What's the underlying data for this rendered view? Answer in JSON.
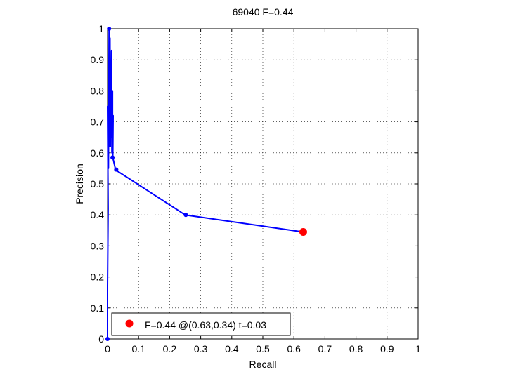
{
  "chart_data": {
    "type": "line",
    "title": "69040 F=0.44",
    "xlabel": "Recall",
    "ylabel": "Precision",
    "xlim": [
      0,
      1
    ],
    "ylim": [
      0,
      1
    ],
    "xticks": [
      0,
      0.1,
      0.2,
      0.3,
      0.4,
      0.5,
      0.6,
      0.7,
      0.8,
      0.9,
      1
    ],
    "yticks": [
      0,
      0.1,
      0.2,
      0.3,
      0.4,
      0.5,
      0.6,
      0.7,
      0.8,
      0.9,
      1
    ],
    "xtick_labels": [
      "0",
      "0.1",
      "0.2",
      "0.3",
      "0.4",
      "0.5",
      "0.6",
      "0.7",
      "0.8",
      "0.9",
      "1"
    ],
    "ytick_labels": [
      "0",
      "0.1",
      "0.2",
      "0.3",
      "0.4",
      "0.5",
      "0.6",
      "0.7",
      "0.8",
      "0.9",
      "1"
    ],
    "grid": true,
    "grid_style": "dotted",
    "legend_position": "bottom-left",
    "series": [
      {
        "color": "#0000ff",
        "line_points": [
          [
            0.0,
            0.0
          ],
          [
            0.0,
            0.17
          ],
          [
            0.002,
            0.42
          ],
          [
            0.0,
            0.75
          ],
          [
            0.003,
            0.55
          ],
          [
            0.005,
            1.0
          ],
          [
            0.007,
            0.62
          ],
          [
            0.008,
            0.97
          ],
          [
            0.009,
            0.62
          ],
          [
            0.01,
            0.8
          ],
          [
            0.011,
            0.65
          ],
          [
            0.013,
            0.93
          ],
          [
            0.014,
            0.6
          ],
          [
            0.016,
            0.8
          ],
          [
            0.016,
            0.59
          ],
          [
            0.018,
            0.72
          ],
          [
            0.017,
            0.585
          ],
          [
            0.026,
            0.545
          ],
          [
            0.25,
            0.4
          ],
          [
            0.629,
            0.345
          ]
        ],
        "marker_points": [
          [
            0.0,
            0.0
          ],
          [
            0.005,
            1.0
          ],
          [
            0.016,
            0.585
          ],
          [
            0.028,
            0.546
          ],
          [
            0.252,
            0.4
          ]
        ]
      }
    ],
    "highlight_point": {
      "recall": 0.63,
      "precision": 0.345,
      "color": "#ff0000",
      "legend_label": "F=0.44 @(0.63,0.34) t=0.03"
    }
  }
}
